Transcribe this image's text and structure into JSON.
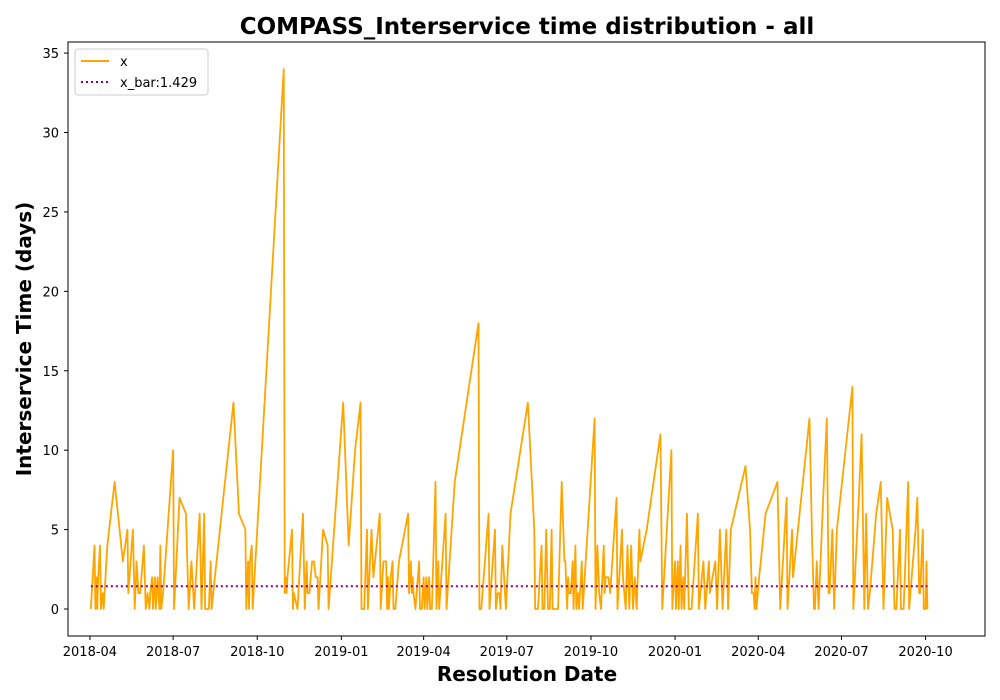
{
  "chart_data": {
    "type": "line",
    "title": "COMPASS_Interservice time distribution - all",
    "xlabel": "Resolution Date",
    "ylabel": "Interservice Time (days)",
    "xlim": [
      "2018-03-08",
      "2020-12-05"
    ],
    "ylim": [
      -1.7,
      35.7
    ],
    "x_ticks": [
      "2018-04-01",
      "2018-07-01",
      "2018-10-01",
      "2019-01-01",
      "2019-04-01",
      "2019-07-01",
      "2019-10-01",
      "2020-01-01",
      "2020-04-01",
      "2020-07-01",
      "2020-10-01"
    ],
    "x_tick_labels": [
      "2018-04",
      "2018-07",
      "2018-10",
      "2019-01",
      "2019-04",
      "2019-07",
      "2019-10",
      "2020-01",
      "2020-04",
      "2020-07",
      "2020-10"
    ],
    "y_ticks": [
      0,
      5,
      10,
      15,
      20,
      25,
      30,
      35
    ],
    "y_tick_labels": [
      "0",
      "5",
      "10",
      "15",
      "20",
      "25",
      "30",
      "35"
    ],
    "grid": false,
    "legend_position": "top-left",
    "legend": [
      "x",
      "x_bar:1.429"
    ],
    "series": [
      {
        "name": "x",
        "color": "#ffa500",
        "style": "solid",
        "points": [
          [
            "2018-04-02",
            0
          ],
          [
            "2018-04-06",
            4
          ],
          [
            "2018-04-07",
            0
          ],
          [
            "2018-04-08",
            2
          ],
          [
            "2018-04-09",
            0
          ],
          [
            "2018-04-10",
            2
          ],
          [
            "2018-04-12",
            4
          ],
          [
            "2018-04-13",
            0
          ],
          [
            "2018-04-15",
            1
          ],
          [
            "2018-04-16",
            0
          ],
          [
            "2018-04-20",
            4
          ],
          [
            "2018-04-28",
            8
          ],
          [
            "2018-05-07",
            3
          ],
          [
            "2018-05-12",
            5
          ],
          [
            "2018-05-13",
            1
          ],
          [
            "2018-05-18",
            5
          ],
          [
            "2018-05-20",
            0
          ],
          [
            "2018-05-22",
            3
          ],
          [
            "2018-05-24",
            1
          ],
          [
            "2018-05-26",
            1
          ],
          [
            "2018-05-30",
            4
          ],
          [
            "2018-06-01",
            0
          ],
          [
            "2018-06-03",
            1
          ],
          [
            "2018-06-05",
            0
          ],
          [
            "2018-06-06",
            1
          ],
          [
            "2018-06-08",
            2
          ],
          [
            "2018-06-09",
            0
          ],
          [
            "2018-06-11",
            2
          ],
          [
            "2018-06-12",
            0
          ],
          [
            "2018-06-14",
            2
          ],
          [
            "2018-06-16",
            0
          ],
          [
            "2018-06-17",
            4
          ],
          [
            "2018-06-18",
            0
          ],
          [
            "2018-06-20",
            1
          ],
          [
            "2018-07-01",
            10
          ],
          [
            "2018-07-02",
            0
          ],
          [
            "2018-07-08",
            7
          ],
          [
            "2018-07-15",
            6
          ],
          [
            "2018-07-18",
            0
          ],
          [
            "2018-07-21",
            3
          ],
          [
            "2018-07-22",
            2
          ],
          [
            "2018-07-24",
            0
          ],
          [
            "2018-07-30",
            6
          ],
          [
            "2018-08-01",
            0
          ],
          [
            "2018-08-04",
            6
          ],
          [
            "2018-08-05",
            0
          ],
          [
            "2018-08-09",
            0
          ],
          [
            "2018-08-11",
            3
          ],
          [
            "2018-08-12",
            0
          ],
          [
            "2018-08-23",
            6
          ],
          [
            "2018-09-05",
            13
          ],
          [
            "2018-09-11",
            6
          ],
          [
            "2018-09-18",
            5
          ],
          [
            "2018-09-19",
            0
          ],
          [
            "2018-09-21",
            3
          ],
          [
            "2018-09-22",
            0
          ],
          [
            "2018-09-23",
            3
          ],
          [
            "2018-09-25",
            4
          ],
          [
            "2018-09-26",
            0
          ],
          [
            "2018-10-30",
            34
          ],
          [
            "2018-10-31",
            1
          ],
          [
            "2018-11-01",
            2
          ],
          [
            "2018-11-02",
            1
          ],
          [
            "2018-11-03",
            2
          ],
          [
            "2018-11-08",
            5
          ],
          [
            "2018-11-09",
            0
          ],
          [
            "2018-11-10",
            1
          ],
          [
            "2018-11-14",
            0
          ],
          [
            "2018-11-20",
            6
          ],
          [
            "2018-11-22",
            0
          ],
          [
            "2018-11-24",
            3
          ],
          [
            "2018-11-25",
            1
          ],
          [
            "2018-11-27",
            1
          ],
          [
            "2018-11-30",
            3
          ],
          [
            "2018-12-02",
            3
          ],
          [
            "2018-12-04",
            2
          ],
          [
            "2018-12-06",
            2
          ],
          [
            "2018-12-07",
            0
          ],
          [
            "2018-12-12",
            5
          ],
          [
            "2018-12-17",
            4
          ],
          [
            "2018-12-18",
            0
          ],
          [
            "2019-01-03",
            13
          ],
          [
            "2019-01-09",
            4
          ],
          [
            "2019-01-16",
            10
          ],
          [
            "2019-01-22",
            13
          ],
          [
            "2019-01-23",
            0
          ],
          [
            "2019-01-26",
            0
          ],
          [
            "2019-01-29",
            5
          ],
          [
            "2019-01-30",
            0
          ],
          [
            "2019-02-03",
            5
          ],
          [
            "2019-02-05",
            2
          ],
          [
            "2019-02-12",
            6
          ],
          [
            "2019-02-13",
            0
          ],
          [
            "2019-02-16",
            3
          ],
          [
            "2019-02-19",
            3
          ],
          [
            "2019-02-20",
            0
          ],
          [
            "2019-02-21",
            2
          ],
          [
            "2019-02-22",
            0
          ],
          [
            "2019-02-24",
            2
          ],
          [
            "2019-02-26",
            3
          ],
          [
            "2019-02-27",
            0
          ],
          [
            "2019-03-01",
            0
          ],
          [
            "2019-03-05",
            3
          ],
          [
            "2019-03-15",
            6
          ],
          [
            "2019-03-16",
            1
          ],
          [
            "2019-03-18",
            3
          ],
          [
            "2019-03-19",
            1
          ],
          [
            "2019-03-20",
            2
          ],
          [
            "2019-03-21",
            1
          ],
          [
            "2019-03-23",
            0
          ],
          [
            "2019-03-27",
            3
          ],
          [
            "2019-03-28",
            0
          ],
          [
            "2019-03-30",
            0
          ],
          [
            "2019-04-01",
            2
          ],
          [
            "2019-04-02",
            0
          ],
          [
            "2019-04-04",
            2
          ],
          [
            "2019-04-05",
            0
          ],
          [
            "2019-04-07",
            2
          ],
          [
            "2019-04-08",
            0
          ],
          [
            "2019-04-10",
            0
          ],
          [
            "2019-04-14",
            8
          ],
          [
            "2019-04-15",
            0
          ],
          [
            "2019-04-17",
            3
          ],
          [
            "2019-04-18",
            0
          ],
          [
            "2019-04-25",
            6
          ],
          [
            "2019-04-26",
            0
          ],
          [
            "2019-05-05",
            8
          ],
          [
            "2019-05-31",
            18
          ],
          [
            "2019-06-01",
            0
          ],
          [
            "2019-06-03",
            0
          ],
          [
            "2019-06-11",
            6
          ],
          [
            "2019-06-12",
            0
          ],
          [
            "2019-06-18",
            5
          ],
          [
            "2019-06-19",
            0
          ],
          [
            "2019-06-21",
            1
          ],
          [
            "2019-06-23",
            1
          ],
          [
            "2019-06-24",
            0
          ],
          [
            "2019-06-26",
            4
          ],
          [
            "2019-06-30",
            0
          ],
          [
            "2019-07-05",
            6
          ],
          [
            "2019-07-24",
            13
          ],
          [
            "2019-07-31",
            5
          ],
          [
            "2019-08-01",
            0
          ],
          [
            "2019-08-04",
            0
          ],
          [
            "2019-08-08",
            4
          ],
          [
            "2019-08-09",
            0
          ],
          [
            "2019-08-11",
            0
          ],
          [
            "2019-08-13",
            5
          ],
          [
            "2019-08-15",
            0
          ],
          [
            "2019-08-17",
            0
          ],
          [
            "2019-08-19",
            5
          ],
          [
            "2019-08-20",
            0
          ],
          [
            "2019-08-26",
            0
          ],
          [
            "2019-08-30",
            8
          ],
          [
            "2019-09-02",
            3
          ],
          [
            "2019-09-03",
            3
          ],
          [
            "2019-09-05",
            0
          ],
          [
            "2019-09-06",
            2
          ],
          [
            "2019-09-07",
            1
          ],
          [
            "2019-09-09",
            1
          ],
          [
            "2019-09-11",
            3
          ],
          [
            "2019-09-12",
            0
          ],
          [
            "2019-09-14",
            4
          ],
          [
            "2019-09-15",
            0
          ],
          [
            "2019-09-17",
            1
          ],
          [
            "2019-09-18",
            0
          ],
          [
            "2019-09-21",
            3
          ],
          [
            "2019-09-22",
            0
          ],
          [
            "2019-10-05",
            12
          ],
          [
            "2019-10-06",
            0
          ],
          [
            "2019-10-08",
            4
          ],
          [
            "2019-10-10",
            1
          ],
          [
            "2019-10-12",
            0
          ],
          [
            "2019-10-15",
            4
          ],
          [
            "2019-10-16",
            1
          ],
          [
            "2019-10-17",
            2
          ],
          [
            "2019-10-18",
            2
          ],
          [
            "2019-10-20",
            2
          ],
          [
            "2019-10-22",
            1
          ],
          [
            "2019-10-29",
            7
          ],
          [
            "2019-10-30",
            0
          ],
          [
            "2019-11-04",
            5
          ],
          [
            "2019-11-05",
            2
          ],
          [
            "2019-11-08",
            0
          ],
          [
            "2019-11-10",
            4
          ],
          [
            "2019-11-12",
            0
          ],
          [
            "2019-11-14",
            4
          ],
          [
            "2019-11-16",
            0
          ],
          [
            "2019-11-18",
            2
          ],
          [
            "2019-11-20",
            0
          ],
          [
            "2019-11-23",
            5
          ],
          [
            "2019-11-24",
            3
          ],
          [
            "2019-12-01",
            5
          ],
          [
            "2019-12-16",
            11
          ],
          [
            "2019-12-18",
            0
          ],
          [
            "2019-12-22",
            4
          ],
          [
            "2019-12-28",
            10
          ],
          [
            "2019-12-29",
            0
          ],
          [
            "2020-01-01",
            3
          ],
          [
            "2020-01-02",
            0
          ],
          [
            "2020-01-04",
            3
          ],
          [
            "2020-01-05",
            0
          ],
          [
            "2020-01-07",
            4
          ],
          [
            "2020-01-08",
            0
          ],
          [
            "2020-01-10",
            2
          ],
          [
            "2020-01-11",
            0
          ],
          [
            "2020-01-14",
            6
          ],
          [
            "2020-01-16",
            0
          ],
          [
            "2020-01-19",
            0
          ],
          [
            "2020-01-26",
            6
          ],
          [
            "2020-01-27",
            0
          ],
          [
            "2020-02-01",
            3
          ],
          [
            "2020-02-03",
            0
          ],
          [
            "2020-02-07",
            3
          ],
          [
            "2020-02-08",
            1
          ],
          [
            "2020-02-14",
            3
          ],
          [
            "2020-02-16",
            0
          ],
          [
            "2020-02-19",
            5
          ],
          [
            "2020-02-22",
            0
          ],
          [
            "2020-02-26",
            5
          ],
          [
            "2020-02-28",
            0
          ],
          [
            "2020-03-02",
            5
          ],
          [
            "2020-03-18",
            9
          ],
          [
            "2020-03-23",
            5
          ],
          [
            "2020-03-25",
            1
          ],
          [
            "2020-03-27",
            1
          ],
          [
            "2020-03-28",
            0
          ],
          [
            "2020-03-29",
            2
          ],
          [
            "2020-03-30",
            0
          ],
          [
            "2020-04-02",
            2
          ],
          [
            "2020-04-09",
            6
          ],
          [
            "2020-04-22",
            8
          ],
          [
            "2020-04-25",
            0
          ],
          [
            "2020-05-02",
            7
          ],
          [
            "2020-05-03",
            0
          ],
          [
            "2020-05-08",
            5
          ],
          [
            "2020-05-09",
            2
          ],
          [
            "2020-05-18",
            7
          ],
          [
            "2020-05-27",
            12
          ],
          [
            "2020-05-30",
            4
          ],
          [
            "2020-06-01",
            0
          ],
          [
            "2020-06-02",
            0
          ],
          [
            "2020-06-04",
            3
          ],
          [
            "2020-06-06",
            0
          ],
          [
            "2020-06-11",
            7
          ],
          [
            "2020-06-15",
            12
          ],
          [
            "2020-06-17",
            1
          ],
          [
            "2020-06-18",
            1
          ],
          [
            "2020-06-21",
            5
          ],
          [
            "2020-06-23",
            0
          ],
          [
            "2020-06-26",
            5
          ],
          [
            "2020-07-13",
            14
          ],
          [
            "2020-07-14",
            0
          ],
          [
            "2020-07-20",
            7
          ],
          [
            "2020-07-23",
            11
          ],
          [
            "2020-07-26",
            0
          ],
          [
            "2020-07-28",
            6
          ],
          [
            "2020-07-30",
            0
          ],
          [
            "2020-08-01",
            1
          ],
          [
            "2020-08-08",
            6
          ],
          [
            "2020-08-13",
            8
          ],
          [
            "2020-08-16",
            0
          ],
          [
            "2020-08-20",
            7
          ],
          [
            "2020-08-26",
            5
          ],
          [
            "2020-08-28",
            0
          ],
          [
            "2020-08-30",
            0
          ],
          [
            "2020-09-03",
            5
          ],
          [
            "2020-09-04",
            0
          ],
          [
            "2020-09-07",
            0
          ],
          [
            "2020-09-12",
            8
          ],
          [
            "2020-09-13",
            0
          ],
          [
            "2020-09-20",
            5
          ],
          [
            "2020-09-22",
            7
          ],
          [
            "2020-09-24",
            1
          ],
          [
            "2020-09-25",
            1
          ],
          [
            "2020-09-28",
            5
          ],
          [
            "2020-09-29",
            0
          ],
          [
            "2020-10-01",
            0
          ],
          [
            "2020-10-02",
            3
          ],
          [
            "2020-10-03",
            0
          ]
        ]
      },
      {
        "name": "x_bar:1.429",
        "color": "#800080",
        "style": "dotted",
        "points": [
          [
            "2018-04-02",
            1.429
          ],
          [
            "2020-10-03",
            1.429
          ]
        ]
      }
    ]
  }
}
